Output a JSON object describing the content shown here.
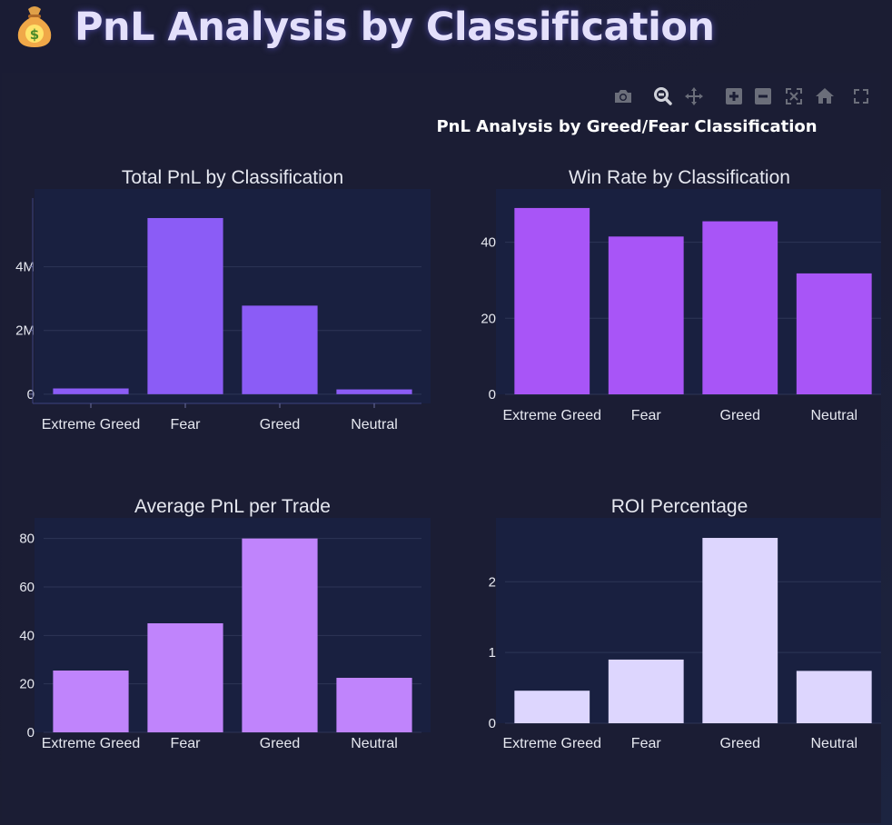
{
  "header": {
    "icon": "money-bag-icon",
    "title": "PnL Analysis by Classification"
  },
  "modebar": {
    "buttons": [
      "camera-icon",
      "zoom-icon",
      "pan-icon",
      "zoom-in-icon",
      "zoom-out-icon",
      "autoscale-icon",
      "home-icon",
      "fullscreen-icon"
    ]
  },
  "figure": {
    "title": "PnL Analysis by Greed/Fear Classification"
  },
  "colors": {
    "total_pnl": "#8b5cf6",
    "win_rate": "#a855f7",
    "avg_pnl": "#c084fc",
    "roi": "#ddd6fe",
    "plot_bg": "#192040",
    "grid": "#2d3556",
    "text": "#e6e8f0"
  },
  "chart_data": [
    {
      "type": "bar",
      "title": "Total PnL by Classification",
      "categories": [
        "Extreme Greed",
        "Fear",
        "Greed",
        "Neutral"
      ],
      "values": [
        180000,
        5530000,
        2780000,
        150000
      ],
      "ylim": [
        -290000,
        6100000
      ],
      "yticks": [
        0,
        2000000,
        4000000
      ],
      "yticklabels": [
        "0",
        "2M",
        "4M"
      ],
      "color_key": "total_pnl"
    },
    {
      "type": "bar",
      "title": "Win Rate by Classification",
      "categories": [
        "Extreme Greed",
        "Fear",
        "Greed",
        "Neutral"
      ],
      "values": [
        49.0,
        41.5,
        45.5,
        31.8
      ],
      "ylim": [
        0,
        54
      ],
      "yticks": [
        0,
        20,
        40
      ],
      "yticklabels": [
        "0",
        "20",
        "40"
      ],
      "color_key": "win_rate"
    },
    {
      "type": "bar",
      "title": "Average PnL per Trade",
      "categories": [
        "Extreme Greed",
        "Fear",
        "Greed",
        "Neutral"
      ],
      "values": [
        25.5,
        45.0,
        80.0,
        22.5
      ],
      "ylim": [
        0,
        84
      ],
      "yticks": [
        0,
        20,
        40,
        60,
        80
      ],
      "yticklabels": [
        "0",
        "20",
        "40",
        "60",
        "80"
      ],
      "color_key": "avg_pnl"
    },
    {
      "type": "bar",
      "title": "ROI Percentage",
      "categories": [
        "Extreme Greed",
        "Fear",
        "Greed",
        "Neutral"
      ],
      "values": [
        0.46,
        0.9,
        2.62,
        0.74
      ],
      "ylim": [
        0,
        2.8
      ],
      "yticks": [
        0,
        1,
        2
      ],
      "yticklabels": [
        "0",
        "1",
        "2"
      ],
      "color_key": "roi"
    }
  ]
}
